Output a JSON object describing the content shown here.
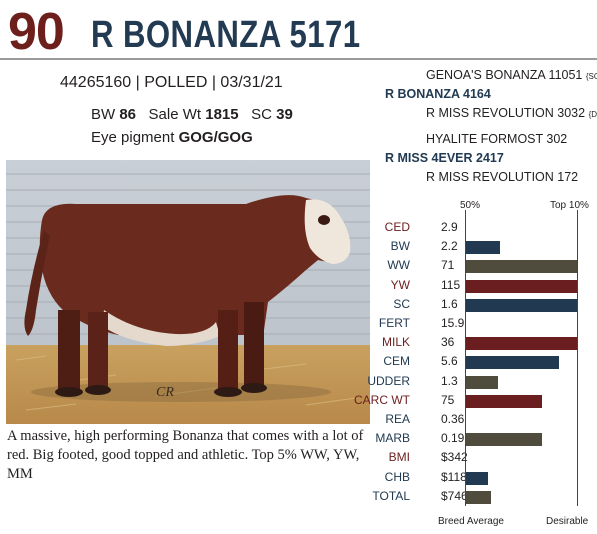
{
  "header": {
    "lot_number": "90",
    "animal_name": "R BONANZA 5171"
  },
  "details": {
    "id_line": "44265160 | POLLED | 03/31/21",
    "bw_label": "BW",
    "bw_value": "86",
    "sale_wt_label": "Sale Wt",
    "sale_wt_value": "1815",
    "sc_label": "SC",
    "sc_value": "39",
    "eye_label": "Eye pigment",
    "eye_value": "GOG/GOG"
  },
  "pedigree": {
    "sire_sire": "GENOA'S BONANZA 11051",
    "sire_sire_tag": "{SOD}",
    "sire": "R BONANZA 4164",
    "sire_dam": "R MISS REVOLUTION 3032",
    "sire_dam_tag": "{DOD}",
    "dam_sire": "HYALITE FORMOST 302",
    "dam": "R MISS 4EVER 2417",
    "dam_dam": "R MISS REVOLUTION 172"
  },
  "photo": {
    "watermark": "CR"
  },
  "description": "A massive, high performing Bonanza that comes with a lot of red. Big footed, good topped and athletic. Top 5% WW, YW, MM",
  "chart_data": {
    "type": "bar",
    "scale_low_label": "50%",
    "scale_high_label": "Top 10%",
    "bottom_left_label": "Breed Average",
    "bottom_right_label": "Desirable",
    "colors": {
      "navy": "#213a51",
      "maroon": "#6b1e1f",
      "olive": "#4f4b3d",
      "label_red": "#6b1e1f",
      "label_navy": "#213a51"
    },
    "traits": [
      {
        "label": "CED",
        "value": "2.9",
        "fill": 0,
        "color": "maroon",
        "label_color": "label_red"
      },
      {
        "label": "BW",
        "value": "2.2",
        "fill": 0.3,
        "color": "navy",
        "label_color": "label_navy"
      },
      {
        "label": "WW",
        "value": "71",
        "fill": 1.0,
        "color": "olive",
        "label_color": "label_navy"
      },
      {
        "label": "YW",
        "value": "115",
        "fill": 1.0,
        "color": "maroon",
        "label_color": "label_red"
      },
      {
        "label": "SC",
        "value": "1.6",
        "fill": 1.0,
        "color": "navy",
        "label_color": "label_navy"
      },
      {
        "label": "FERT",
        "value": "15.9",
        "fill": 0,
        "color": "olive",
        "label_color": "label_navy"
      },
      {
        "label": "MILK",
        "value": "36",
        "fill": 1.0,
        "color": "maroon",
        "label_color": "label_red"
      },
      {
        "label": "CEM",
        "value": "5.6",
        "fill": 0.83,
        "color": "navy",
        "label_color": "label_navy"
      },
      {
        "label": "UDDER",
        "value": "1.3",
        "fill": 0.29,
        "color": "olive",
        "label_color": "label_navy"
      },
      {
        "label": "CARC WT",
        "value": "75",
        "fill": 0.68,
        "color": "maroon",
        "label_color": "label_red"
      },
      {
        "label": "REA",
        "value": "0.36",
        "fill": 0,
        "color": "navy",
        "label_color": "label_navy"
      },
      {
        "label": "MARB",
        "value": "0.19",
        "fill": 0.68,
        "color": "olive",
        "label_color": "label_navy"
      },
      {
        "label": "BMI",
        "value": "$342",
        "fill": 0,
        "color": "maroon",
        "label_color": "label_red"
      },
      {
        "label": "CHB",
        "value": "$118",
        "fill": 0.2,
        "color": "navy",
        "label_color": "label_navy"
      },
      {
        "label": "TOTAL",
        "value": "$746",
        "fill": 0.22,
        "color": "olive",
        "label_color": "label_navy"
      }
    ]
  }
}
